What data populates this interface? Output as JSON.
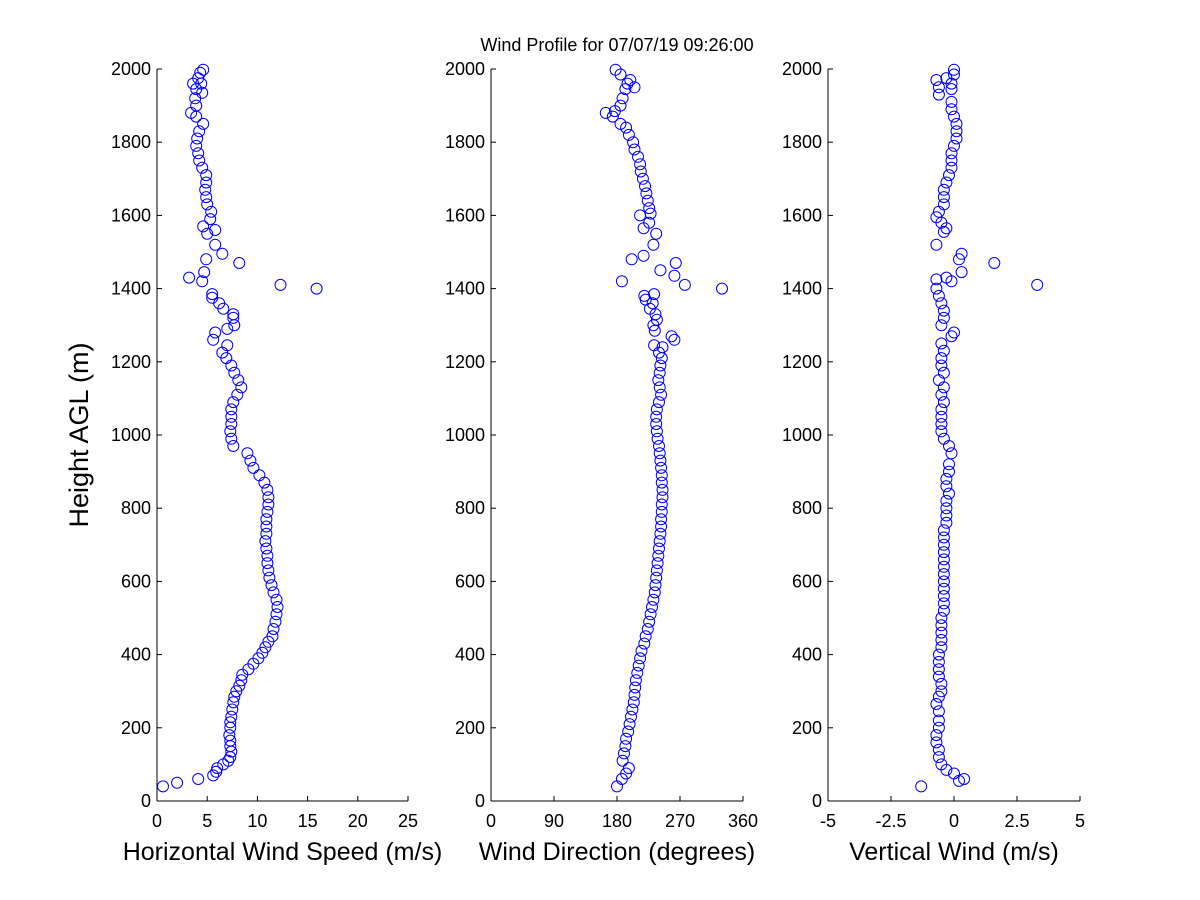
{
  "title": "Wind Profile for  07/07/19 09:26:00",
  "colors": {
    "marker": "#0000ff",
    "axis": "#000000",
    "background": "#ffffff"
  },
  "chart_data": [
    {
      "type": "scatter",
      "marker": "open-circle",
      "xlabel": "Horizontal Wind Speed (m/s)",
      "ylabel": "Height AGL (m)",
      "xlim": [
        0,
        25
      ],
      "ylim": [
        0,
        2000
      ],
      "xticks": [
        "0",
        "5",
        "10",
        "15",
        "20",
        "25"
      ],
      "yticks": [
        "0",
        "200",
        "400",
        "600",
        "800",
        "1000",
        "1200",
        "1400",
        "1600",
        "1800",
        "2000"
      ],
      "points": [
        [
          0.6,
          40
        ],
        [
          2.0,
          50
        ],
        [
          4.1,
          60
        ],
        [
          5.6,
          70
        ],
        [
          5.9,
          80
        ],
        [
          6.0,
          90
        ],
        [
          6.6,
          100
        ],
        [
          7.1,
          110
        ],
        [
          7.3,
          120
        ],
        [
          7.4,
          135
        ],
        [
          7.3,
          150
        ],
        [
          7.3,
          165
        ],
        [
          7.2,
          180
        ],
        [
          7.3,
          200
        ],
        [
          7.3,
          215
        ],
        [
          7.4,
          230
        ],
        [
          7.5,
          250
        ],
        [
          7.6,
          270
        ],
        [
          7.7,
          285
        ],
        [
          7.9,
          300
        ],
        [
          8.2,
          315
        ],
        [
          8.4,
          330
        ],
        [
          8.5,
          345
        ],
        [
          9.1,
          360
        ],
        [
          9.6,
          375
        ],
        [
          10.1,
          390
        ],
        [
          10.5,
          405
        ],
        [
          10.8,
          420
        ],
        [
          11.1,
          435
        ],
        [
          11.5,
          450
        ],
        [
          11.6,
          470
        ],
        [
          11.8,
          490
        ],
        [
          11.9,
          510
        ],
        [
          12.0,
          530
        ],
        [
          11.9,
          550
        ],
        [
          11.6,
          570
        ],
        [
          11.4,
          590
        ],
        [
          11.2,
          610
        ],
        [
          11.1,
          630
        ],
        [
          11.0,
          650
        ],
        [
          11.0,
          670
        ],
        [
          10.9,
          690
        ],
        [
          10.8,
          710
        ],
        [
          10.9,
          730
        ],
        [
          10.9,
          750
        ],
        [
          10.9,
          770
        ],
        [
          11.0,
          790
        ],
        [
          11.1,
          810
        ],
        [
          11.1,
          830
        ],
        [
          11.0,
          850
        ],
        [
          10.7,
          870
        ],
        [
          10.2,
          890
        ],
        [
          9.6,
          910
        ],
        [
          9.3,
          930
        ],
        [
          9.0,
          950
        ],
        [
          7.6,
          970
        ],
        [
          7.4,
          990
        ],
        [
          7.3,
          1010
        ],
        [
          7.4,
          1030
        ],
        [
          7.4,
          1050
        ],
        [
          7.4,
          1070
        ],
        [
          7.6,
          1090
        ],
        [
          8.0,
          1110
        ],
        [
          8.4,
          1130
        ],
        [
          8.1,
          1150
        ],
        [
          7.7,
          1170
        ],
        [
          7.4,
          1190
        ],
        [
          6.9,
          1210
        ],
        [
          6.5,
          1225
        ],
        [
          7.0,
          1245
        ],
        [
          5.6,
          1260
        ],
        [
          5.8,
          1280
        ],
        [
          7.0,
          1290
        ],
        [
          7.7,
          1300
        ],
        [
          7.6,
          1320
        ],
        [
          7.6,
          1330
        ],
        [
          6.6,
          1345
        ],
        [
          6.2,
          1360
        ],
        [
          5.5,
          1375
        ],
        [
          5.5,
          1385
        ],
        [
          15.9,
          1400
        ],
        [
          12.3,
          1410
        ],
        [
          4.5,
          1420
        ],
        [
          3.2,
          1430
        ],
        [
          4.7,
          1445
        ],
        [
          8.2,
          1470
        ],
        [
          4.9,
          1480
        ],
        [
          6.5,
          1495
        ],
        [
          5.8,
          1520
        ],
        [
          5.0,
          1550
        ],
        [
          5.8,
          1560
        ],
        [
          4.6,
          1570
        ],
        [
          5.3,
          1590
        ],
        [
          5.4,
          1610
        ],
        [
          5.0,
          1630
        ],
        [
          4.9,
          1650
        ],
        [
          4.8,
          1670
        ],
        [
          4.9,
          1690
        ],
        [
          4.9,
          1710
        ],
        [
          4.5,
          1730
        ],
        [
          4.2,
          1750
        ],
        [
          4.1,
          1770
        ],
        [
          3.9,
          1790
        ],
        [
          4.0,
          1810
        ],
        [
          4.2,
          1830
        ],
        [
          4.6,
          1850
        ],
        [
          3.9,
          1870
        ],
        [
          3.4,
          1880
        ],
        [
          3.9,
          1900
        ],
        [
          3.8,
          1920
        ],
        [
          4.5,
          1935
        ],
        [
          3.9,
          1945
        ],
        [
          4.4,
          1960
        ],
        [
          3.6,
          1960
        ],
        [
          4.1,
          1975
        ],
        [
          4.3,
          1990
        ],
        [
          4.6,
          1998
        ]
      ]
    },
    {
      "type": "scatter",
      "marker": "open-circle",
      "xlabel": "Wind Direction (degrees)",
      "ylabel": "",
      "xlim": [
        0,
        360
      ],
      "ylim": [
        0,
        2000
      ],
      "xticks": [
        "0",
        "90",
        "180",
        "270",
        "360"
      ],
      "yticks": [
        "0",
        "200",
        "400",
        "600",
        "800",
        "1000",
        "1200",
        "1400",
        "1600",
        "1800",
        "2000"
      ],
      "points": [
        [
          180,
          40
        ],
        [
          187,
          60
        ],
        [
          193,
          75
        ],
        [
          197,
          90
        ],
        [
          188,
          110
        ],
        [
          190,
          130
        ],
        [
          192,
          150
        ],
        [
          193,
          170
        ],
        [
          196,
          190
        ],
        [
          198,
          210
        ],
        [
          200,
          230
        ],
        [
          202,
          250
        ],
        [
          204,
          270
        ],
        [
          205,
          290
        ],
        [
          206,
          310
        ],
        [
          207,
          330
        ],
        [
          209,
          350
        ],
        [
          211,
          370
        ],
        [
          213,
          390
        ],
        [
          215,
          410
        ],
        [
          219,
          430
        ],
        [
          221,
          450
        ],
        [
          224,
          470
        ],
        [
          226,
          490
        ],
        [
          228,
          510
        ],
        [
          230,
          530
        ],
        [
          232,
          550
        ],
        [
          234,
          570
        ],
        [
          235,
          590
        ],
        [
          236,
          610
        ],
        [
          237,
          630
        ],
        [
          238,
          650
        ],
        [
          239,
          670
        ],
        [
          240,
          690
        ],
        [
          241,
          710
        ],
        [
          242,
          730
        ],
        [
          243,
          750
        ],
        [
          243,
          770
        ],
        [
          244,
          790
        ],
        [
          244,
          810
        ],
        [
          245,
          830
        ],
        [
          245,
          850
        ],
        [
          244,
          870
        ],
        [
          244,
          890
        ],
        [
          243,
          910
        ],
        [
          242,
          930
        ],
        [
          241,
          950
        ],
        [
          240,
          970
        ],
        [
          238,
          990
        ],
        [
          237,
          1010
        ],
        [
          236,
          1030
        ],
        [
          236,
          1050
        ],
        [
          237,
          1070
        ],
        [
          240,
          1090
        ],
        [
          243,
          1110
        ],
        [
          241,
          1130
        ],
        [
          239,
          1150
        ],
        [
          241,
          1170
        ],
        [
          242,
          1190
        ],
        [
          244,
          1210
        ],
        [
          240,
          1225
        ],
        [
          245,
          1240
        ],
        [
          233,
          1245
        ],
        [
          262,
          1260
        ],
        [
          258,
          1270
        ],
        [
          234,
          1285
        ],
        [
          232,
          1300
        ],
        [
          237,
          1315
        ],
        [
          235,
          1330
        ],
        [
          227,
          1345
        ],
        [
          231,
          1360
        ],
        [
          221,
          1370
        ],
        [
          233,
          1385
        ],
        [
          219,
          1380
        ],
        [
          330,
          1400
        ],
        [
          277,
          1410
        ],
        [
          187,
          1420
        ],
        [
          262,
          1435
        ],
        [
          242,
          1450
        ],
        [
          264,
          1470
        ],
        [
          201,
          1480
        ],
        [
          218,
          1490
        ],
        [
          232,
          1520
        ],
        [
          236,
          1550
        ],
        [
          218,
          1565
        ],
        [
          226,
          1580
        ],
        [
          228,
          1605
        ],
        [
          213,
          1600
        ],
        [
          226,
          1620
        ],
        [
          224,
          1640
        ],
        [
          222,
          1660
        ],
        [
          220,
          1680
        ],
        [
          217,
          1700
        ],
        [
          214,
          1720
        ],
        [
          213,
          1740
        ],
        [
          210,
          1760
        ],
        [
          205,
          1780
        ],
        [
          203,
          1800
        ],
        [
          197,
          1820
        ],
        [
          193,
          1840
        ],
        [
          185,
          1850
        ],
        [
          174,
          1870
        ],
        [
          164,
          1880
        ],
        [
          177,
          1885
        ],
        [
          185,
          1900
        ],
        [
          188,
          1920
        ],
        [
          192,
          1945
        ],
        [
          205,
          1950
        ],
        [
          195,
          1960
        ],
        [
          185,
          1985
        ],
        [
          199,
          1970
        ],
        [
          178,
          1998
        ]
      ]
    },
    {
      "type": "scatter",
      "marker": "open-circle",
      "xlabel": "Vertical Wind (m/s)",
      "ylabel": "",
      "xlim": [
        -5,
        5
      ],
      "ylim": [
        0,
        2000
      ],
      "xticks": [
        "-5",
        "-2.5",
        "0",
        "2.5",
        "5"
      ],
      "yticks": [
        "0",
        "200",
        "400",
        "600",
        "800",
        "1000",
        "1200",
        "1400",
        "1600",
        "1800",
        "2000"
      ],
      "points": [
        [
          -1.3,
          40
        ],
        [
          0.2,
          55
        ],
        [
          0.4,
          60
        ],
        [
          0.0,
          75
        ],
        [
          -0.3,
          85
        ],
        [
          -0.5,
          100
        ],
        [
          -0.6,
          120
        ],
        [
          -0.6,
          140
        ],
        [
          -0.7,
          160
        ],
        [
          -0.7,
          180
        ],
        [
          -0.6,
          200
        ],
        [
          -0.6,
          220
        ],
        [
          -0.6,
          245
        ],
        [
          -0.7,
          265
        ],
        [
          -0.6,
          285
        ],
        [
          -0.5,
          300
        ],
        [
          -0.5,
          320
        ],
        [
          -0.6,
          340
        ],
        [
          -0.6,
          360
        ],
        [
          -0.6,
          380
        ],
        [
          -0.6,
          400
        ],
        [
          -0.5,
          420
        ],
        [
          -0.5,
          440
        ],
        [
          -0.5,
          460
        ],
        [
          -0.5,
          480
        ],
        [
          -0.5,
          500
        ],
        [
          -0.4,
          520
        ],
        [
          -0.4,
          540
        ],
        [
          -0.4,
          560
        ],
        [
          -0.4,
          580
        ],
        [
          -0.4,
          600
        ],
        [
          -0.4,
          620
        ],
        [
          -0.4,
          640
        ],
        [
          -0.4,
          660
        ],
        [
          -0.4,
          680
        ],
        [
          -0.4,
          700
        ],
        [
          -0.4,
          720
        ],
        [
          -0.4,
          740
        ],
        [
          -0.3,
          760
        ],
        [
          -0.3,
          780
        ],
        [
          -0.3,
          800
        ],
        [
          -0.3,
          820
        ],
        [
          -0.2,
          840
        ],
        [
          -0.3,
          860
        ],
        [
          -0.3,
          880
        ],
        [
          -0.2,
          900
        ],
        [
          -0.2,
          920
        ],
        [
          -0.1,
          950
        ],
        [
          -0.2,
          970
        ],
        [
          -0.4,
          990
        ],
        [
          -0.5,
          1010
        ],
        [
          -0.5,
          1030
        ],
        [
          -0.5,
          1050
        ],
        [
          -0.5,
          1070
        ],
        [
          -0.4,
          1090
        ],
        [
          -0.5,
          1110
        ],
        [
          -0.4,
          1130
        ],
        [
          -0.6,
          1150
        ],
        [
          -0.4,
          1170
        ],
        [
          -0.5,
          1190
        ],
        [
          -0.5,
          1210
        ],
        [
          -0.4,
          1230
        ],
        [
          -0.5,
          1250
        ],
        [
          -0.1,
          1270
        ],
        [
          0.0,
          1280
        ],
        [
          -0.5,
          1300
        ],
        [
          -0.4,
          1320
        ],
        [
          -0.4,
          1340
        ],
        [
          -0.5,
          1360
        ],
        [
          -0.6,
          1380
        ],
        [
          -0.7,
          1400
        ],
        [
          3.3,
          1410
        ],
        [
          -0.1,
          1420
        ],
        [
          -0.7,
          1425
        ],
        [
          -0.3,
          1430
        ],
        [
          0.3,
          1445
        ],
        [
          1.6,
          1470
        ],
        [
          0.2,
          1480
        ],
        [
          0.3,
          1495
        ],
        [
          -0.7,
          1520
        ],
        [
          -0.4,
          1555
        ],
        [
          -0.3,
          1565
        ],
        [
          -0.5,
          1580
        ],
        [
          -0.7,
          1595
        ],
        [
          -0.6,
          1610
        ],
        [
          -0.4,
          1630
        ],
        [
          -0.4,
          1650
        ],
        [
          -0.4,
          1670
        ],
        [
          -0.3,
          1690
        ],
        [
          -0.2,
          1710
        ],
        [
          -0.1,
          1730
        ],
        [
          -0.1,
          1750
        ],
        [
          -0.1,
          1770
        ],
        [
          0.0,
          1790
        ],
        [
          0.1,
          1810
        ],
        [
          0.1,
          1830
        ],
        [
          0.1,
          1850
        ],
        [
          0.0,
          1870
        ],
        [
          -0.1,
          1890
        ],
        [
          -0.1,
          1910
        ],
        [
          -0.6,
          1930
        ],
        [
          -0.1,
          1945
        ],
        [
          -0.6,
          1950
        ],
        [
          -0.1,
          1960
        ],
        [
          -0.7,
          1970
        ],
        [
          -0.3,
          1975
        ],
        [
          0.0,
          1985
        ],
        [
          0.0,
          1998
        ]
      ]
    }
  ]
}
